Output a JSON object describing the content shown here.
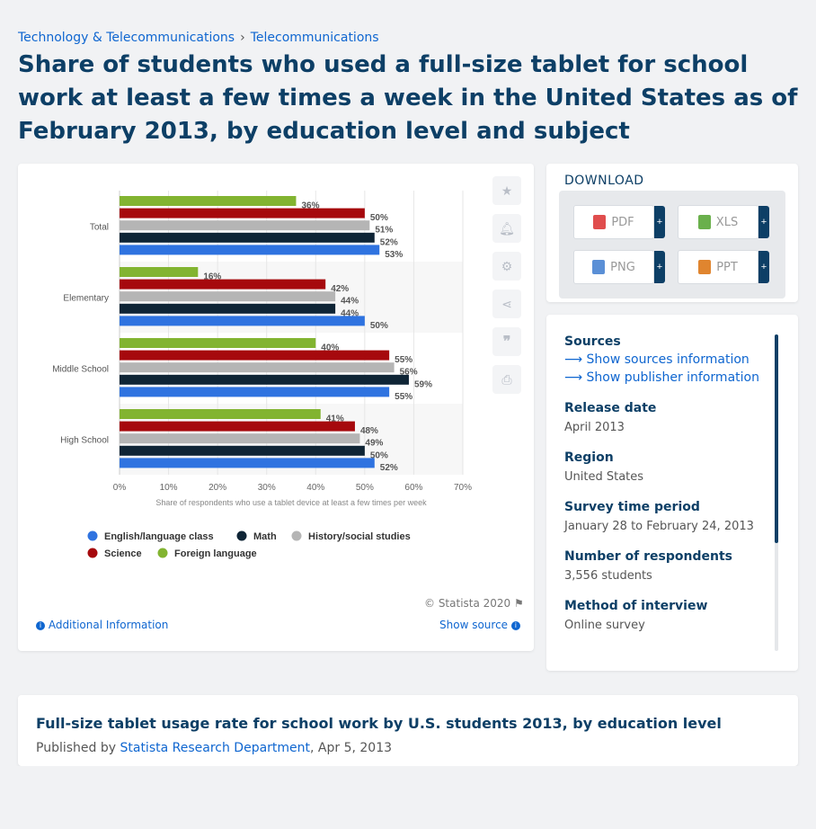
{
  "breadcrumb": {
    "item1": "Technology & Telecommunications",
    "separator": "›",
    "item2": "Telecommunications"
  },
  "page_title": "Share of students who used a full-size tablet for school work at least a few times a week in the United States as of February 2013, by education level and subject",
  "chart_data": {
    "type": "bar",
    "orientation": "horizontal",
    "categories": [
      "Total",
      "Elementary",
      "Middle School",
      "High School"
    ],
    "series": [
      {
        "name": "Foreign language",
        "color": "#82b431",
        "values": [
          36,
          16,
          40,
          41
        ]
      },
      {
        "name": "Science",
        "color": "#a6090d",
        "values": [
          50,
          42,
          55,
          48
        ]
      },
      {
        "name": "History/social studies",
        "color": "#b5b5b5",
        "values": [
          51,
          44,
          56,
          49
        ]
      },
      {
        "name": "Math",
        "color": "#0f2536",
        "values": [
          52,
          44,
          59,
          50
        ]
      },
      {
        "name": "English/language class",
        "color": "#2f73e0",
        "values": [
          53,
          50,
          55,
          52
        ]
      }
    ],
    "xlim": [
      0,
      70
    ],
    "x_ticks": [
      "0%",
      "10%",
      "20%",
      "30%",
      "40%",
      "50%",
      "60%",
      "70%"
    ],
    "xlabel": "Share of respondents who use a tablet device at least a few times per week",
    "value_suffix": "%",
    "legend": {
      "placement": "bottom",
      "rows": [
        [
          {
            "name": "English/language class",
            "color": "#2f73e0"
          },
          {
            "name": "Math",
            "color": "#0f2536"
          },
          {
            "name": "History/social studies",
            "color": "#b5b5b5"
          }
        ],
        [
          {
            "name": "Science",
            "color": "#a6090d"
          },
          {
            "name": "Foreign language",
            "color": "#82b431"
          }
        ]
      ]
    },
    "grid": true
  },
  "chart_footer": {
    "copyright": "© Statista 2020",
    "additional_info": "Additional Information",
    "show_source": "Show source"
  },
  "toolbar": {
    "icons": [
      "star-icon",
      "bell-icon",
      "gear-icon",
      "share-icon",
      "quote-icon",
      "print-icon"
    ]
  },
  "download": {
    "header": "DOWNLOAD",
    "buttons": [
      {
        "label": "PDF",
        "icon": "pdf-icon",
        "color": "#e04d4d"
      },
      {
        "label": "XLS",
        "icon": "xls-icon",
        "color": "#6ab04c"
      },
      {
        "label": "PNG",
        "icon": "png-icon",
        "color": "#5a8fd6"
      },
      {
        "label": "PPT",
        "icon": "ppt-icon",
        "color": "#e0852f"
      }
    ],
    "plus": "+"
  },
  "info": {
    "sources_label": "Sources",
    "show_sources": "Show sources information",
    "show_publisher": "Show publisher information",
    "release_label": "Release date",
    "release_value": "April 2013",
    "region_label": "Region",
    "region_value": "United States",
    "survey_label": "Survey time period",
    "survey_value": "January 28 to February 24, 2013",
    "respondents_label": "Number of respondents",
    "respondents_value": "3,556 students",
    "method_label": "Method of interview",
    "method_value": "Online survey"
  },
  "bottom": {
    "title": "Full-size tablet usage rate for school work by U.S. students 2013, by education level",
    "published_prefix": "Published by",
    "publisher": "Statista Research Department",
    "date": ", Apr 5, 2013"
  }
}
